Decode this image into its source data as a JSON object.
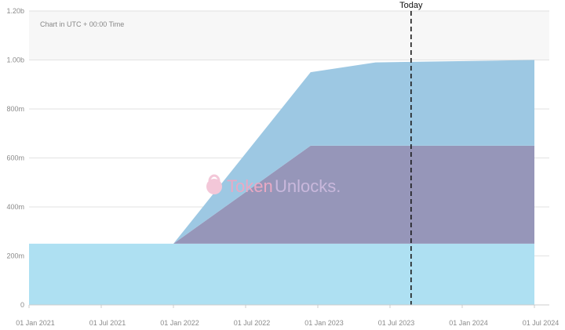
{
  "chart_data": {
    "type": "area",
    "stacked": true,
    "note": "Chart in UTC + 00:00 Time",
    "today_label": "Today",
    "today_x": 2023.646,
    "x_ticks": [
      "01 Jan 2021",
      "01 Jul 2021",
      "01 Jan 2022",
      "01 Jul 2022",
      "01 Jan 2023",
      "01 Jul 2023",
      "01 Jan 2024",
      "01 Jul 2024"
    ],
    "y_ticks": [
      "0",
      "200m",
      "400m",
      "600m",
      "800m",
      "1.00b",
      "1.20b"
    ],
    "y_range": [
      0,
      1200000000
    ],
    "grid": true,
    "series": [
      {
        "color": "#aee0f2",
        "x": [
          2020.85,
          2024.5
        ],
        "values": [
          250000000,
          250000000
        ]
      },
      {
        "color": "#9696b9",
        "x": [
          2020.85,
          2022.0,
          2022.95,
          2024.5
        ],
        "values": [
          0,
          0,
          400000000,
          400000000
        ]
      },
      {
        "color": "#9dc8e3",
        "x": [
          2020.85,
          2022.0,
          2022.95,
          2023.4,
          2024.5
        ],
        "values": [
          0,
          0,
          300000000,
          340000000,
          350000000
        ]
      }
    ],
    "watermark": {
      "part1": "Token",
      "part2": "Unlocks."
    }
  }
}
